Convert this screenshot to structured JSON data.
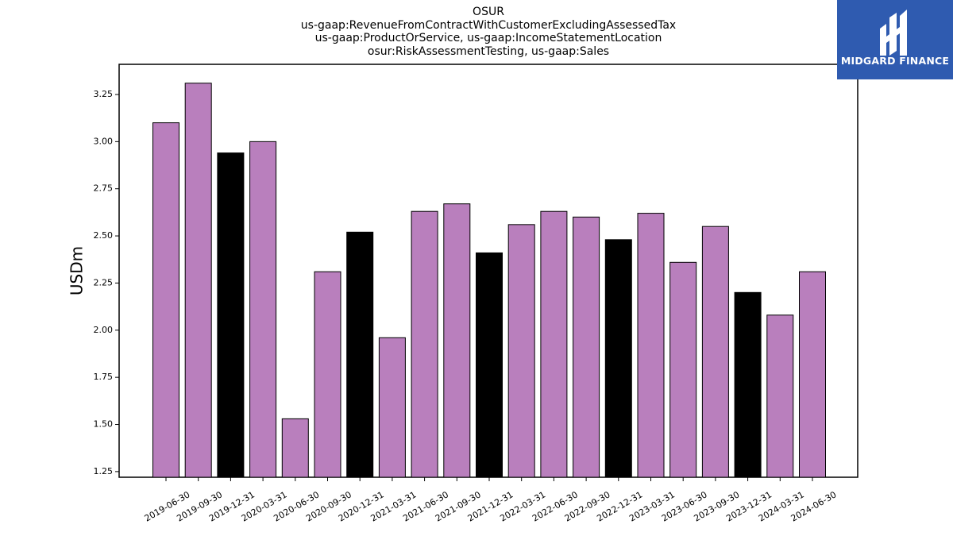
{
  "header": {
    "title_lines": [
      "OSUR",
      "us-gaap:RevenueFromContractWithCustomerExcludingAssessedTax",
      "us-gaap:ProductOrService, us-gaap:IncomeStatementLocation",
      "osur:RiskAssessmentTesting, us-gaap:Sales"
    ]
  },
  "logo": {
    "text": "MIDGARD FINANCE",
    "background": "#2f5bb0"
  },
  "chart_data": {
    "type": "bar",
    "title": "OSUR\nus-gaap:RevenueFromContractWithCustomerExcludingAssessedTax\nus-gaap:ProductOrService, us-gaap:IncomeStatementLocation\nosur:RiskAssessmentTesting, us-gaap:Sales",
    "xlabel": "",
    "ylabel": "USDm",
    "categories": [
      "2019-06-30",
      "2019-09-30",
      "2019-12-31",
      "2020-03-31",
      "2020-06-30",
      "2020-09-30",
      "2020-12-31",
      "2021-03-31",
      "2021-06-30",
      "2021-09-30",
      "2021-12-31",
      "2022-03-31",
      "2022-06-30",
      "2022-09-30",
      "2022-12-31",
      "2023-03-31",
      "2023-06-30",
      "2023-09-30",
      "2023-12-31",
      "2024-03-31",
      "2024-06-30"
    ],
    "values": [
      3.1,
      3.31,
      2.94,
      3.0,
      1.53,
      2.31,
      2.52,
      1.96,
      2.63,
      2.67,
      2.41,
      2.56,
      2.63,
      2.6,
      2.48,
      2.62,
      2.36,
      2.55,
      2.2,
      2.08,
      2.31
    ],
    "bar_colors": [
      "#b97fbd",
      "#b97fbd",
      "#000000",
      "#b97fbd",
      "#b97fbd",
      "#b97fbd",
      "#000000",
      "#b97fbd",
      "#b97fbd",
      "#b97fbd",
      "#000000",
      "#b97fbd",
      "#b97fbd",
      "#b97fbd",
      "#000000",
      "#b97fbd",
      "#b97fbd",
      "#b97fbd",
      "#000000",
      "#b97fbd",
      "#b97fbd"
    ],
    "yticks": [
      1.25,
      1.5,
      1.75,
      2.0,
      2.25,
      2.5,
      2.75,
      3.0,
      3.25
    ],
    "ytick_labels": [
      "1.25",
      "1.50",
      "1.75",
      "2.00",
      "2.25",
      "2.50",
      "2.75",
      "3.00",
      "3.25"
    ],
    "ylim": [
      1.22,
      3.41
    ],
    "grid": false,
    "legend": "none"
  }
}
